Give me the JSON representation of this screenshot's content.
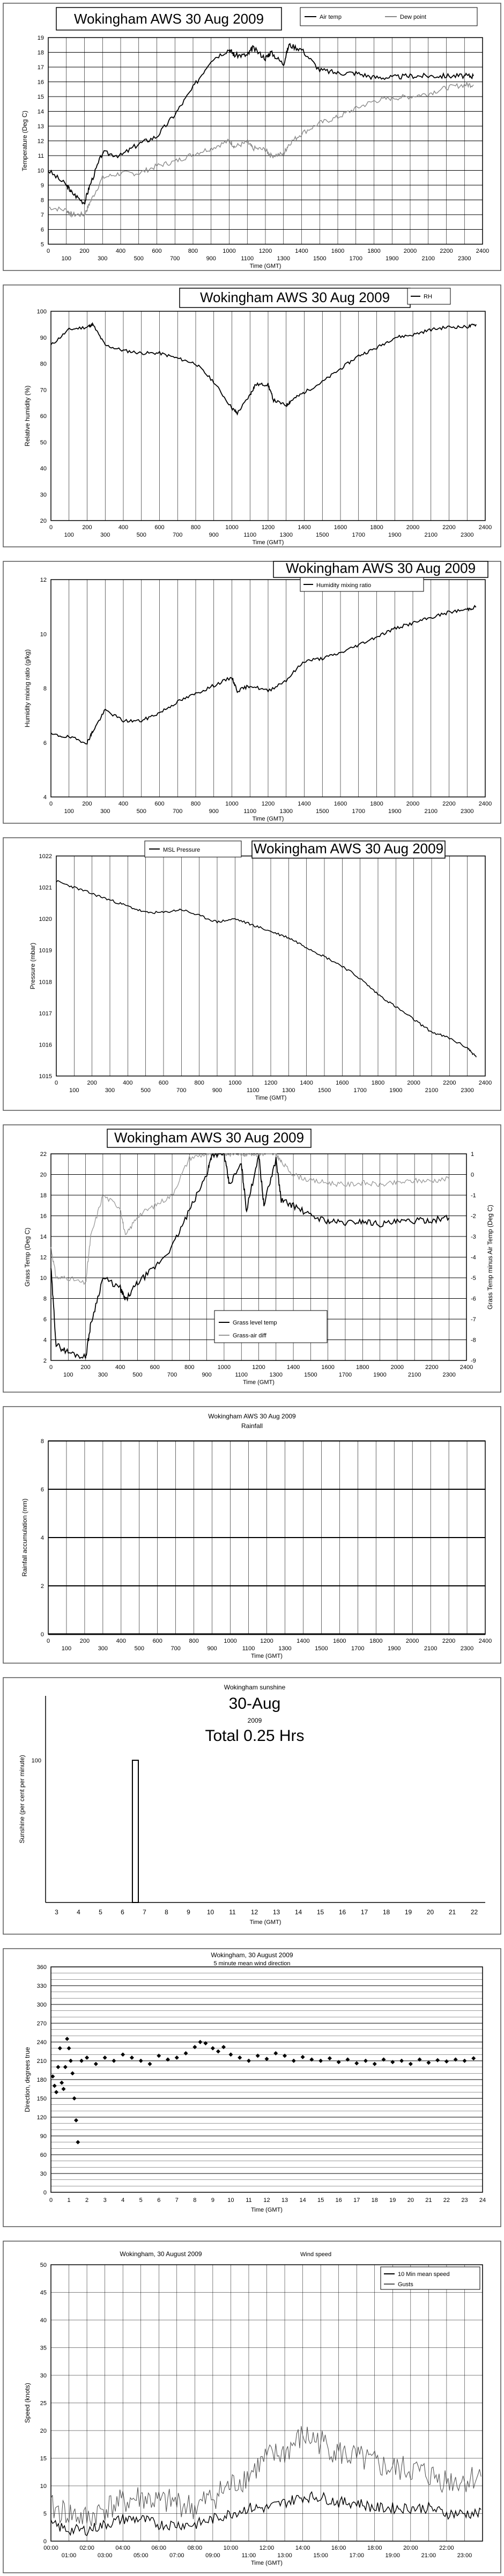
{
  "chart_data": [
    {
      "type": "line",
      "title": "Wokingham AWS 30 Aug 2009",
      "xlabel": "Time (GMT)",
      "ylabel": "Temperature (Deg C)",
      "ylim": [
        5,
        19
      ],
      "yticks": [
        5,
        6,
        7,
        8,
        9,
        10,
        11,
        12,
        13,
        14,
        15,
        16,
        17,
        18,
        19
      ],
      "xticks_top": [
        "0",
        "200",
        "400",
        "600",
        "800",
        "1000",
        "1200",
        "1400",
        "1600",
        "1800",
        "2000",
        "2200",
        "2400"
      ],
      "xticks_bottom": [
        "100",
        "300",
        "500",
        "700",
        "900",
        "1100",
        "1300",
        "1500",
        "1700",
        "1900",
        "2100",
        "2300"
      ],
      "x": [
        0,
        100,
        130,
        200,
        230,
        300,
        400,
        500,
        600,
        700,
        800,
        900,
        1000,
        1030,
        1100,
        1130,
        1200,
        1230,
        1300,
        1330,
        1400,
        1500,
        1600,
        1700,
        1800,
        1900,
        2000,
        2100,
        2200,
        2300,
        2350
      ],
      "series": [
        {
          "name": "Air temp",
          "values": [
            10.0,
            9.0,
            8.5,
            7.8,
            9.0,
            11.2,
            11.0,
            11.8,
            12.3,
            13.8,
            15.6,
            17.5,
            18.2,
            17.8,
            17.8,
            18.3,
            17.6,
            18.0,
            17.2,
            18.5,
            18.2,
            16.8,
            16.6,
            16.6,
            16.3,
            16.3,
            16.4,
            16.4,
            16.4,
            16.4,
            16.4
          ],
          "color": "#000000"
        },
        {
          "name": "Dew point",
          "values": [
            7.5,
            7.3,
            7.0,
            7.0,
            7.8,
            9.5,
            9.8,
            9.8,
            10.3,
            10.6,
            11.1,
            11.5,
            12.0,
            11.6,
            11.9,
            11.5,
            11.4,
            11.0,
            11.1,
            11.8,
            12.5,
            13.2,
            13.6,
            14.2,
            14.7,
            14.9,
            15.0,
            15.2,
            15.6,
            15.8,
            15.8
          ],
          "color": "#888888"
        }
      ]
    },
    {
      "type": "line",
      "title": "Wokingham AWS 30 Aug 2009",
      "xlabel": "Time (GMT)",
      "ylabel": "Relative humidity (%)",
      "ylim": [
        20,
        100
      ],
      "yticks": [
        20,
        30,
        40,
        50,
        60,
        70,
        80,
        90,
        100
      ],
      "xticks_top": [
        "0",
        "200",
        "400",
        "600",
        "800",
        "1000",
        "1200",
        "1400",
        "1600",
        "1800",
        "2000",
        "2200",
        "2400"
      ],
      "xticks_bottom": [
        "100",
        "300",
        "500",
        "700",
        "900",
        "1100",
        "1300",
        "1500",
        "1700",
        "1900",
        "2100",
        "2300"
      ],
      "x": [
        0,
        100,
        200,
        230,
        300,
        400,
        500,
        600,
        700,
        800,
        900,
        1000,
        1030,
        1100,
        1130,
        1200,
        1230,
        1300,
        1330,
        1400,
        1500,
        1600,
        1700,
        1800,
        1900,
        2000,
        2100,
        2200,
        2300,
        2350
      ],
      "series": [
        {
          "name": "RH",
          "values": [
            87,
            93,
            94,
            95,
            87,
            85,
            84,
            84,
            82,
            80,
            73,
            63,
            61,
            68,
            72,
            72,
            66,
            64,
            66,
            69,
            73,
            78,
            83,
            86,
            90,
            91,
            93,
            94,
            94,
            95
          ],
          "color": "#000000"
        }
      ]
    },
    {
      "type": "line",
      "title": "Wokingham AWS 30 Aug 2009",
      "xlabel": "Time (GMT)",
      "ylabel": "Humidity mixing ratio (g/kg)",
      "ylim": [
        4,
        12
      ],
      "yticks": [
        4,
        6,
        8,
        10,
        12
      ],
      "xticks_top": [
        "0",
        "200",
        "400",
        "600",
        "800",
        "1000",
        "1200",
        "1400",
        "1600",
        "1800",
        "2000",
        "2200",
        "2400"
      ],
      "xticks_bottom": [
        "100",
        "300",
        "500",
        "700",
        "900",
        "1100",
        "1300",
        "1500",
        "1700",
        "1900",
        "2100",
        "2300"
      ],
      "x": [
        0,
        100,
        200,
        230,
        300,
        400,
        500,
        600,
        700,
        800,
        900,
        1000,
        1030,
        1100,
        1200,
        1300,
        1400,
        1500,
        1600,
        1700,
        1800,
        1900,
        2000,
        2100,
        2200,
        2300,
        2350
      ],
      "series": [
        {
          "name": "Humidity mixing ratio",
          "values": [
            6.3,
            6.2,
            6.0,
            6.4,
            7.2,
            6.8,
            6.8,
            7.1,
            7.5,
            7.8,
            8.1,
            8.4,
            7.9,
            8.1,
            7.9,
            8.3,
            9.0,
            9.1,
            9.3,
            9.6,
            9.9,
            10.2,
            10.4,
            10.6,
            10.8,
            10.9,
            11.0
          ],
          "color": "#000000"
        }
      ]
    },
    {
      "type": "line",
      "title": "Wokingham AWS 30 Aug 2009",
      "xlabel": "Time (GMT)",
      "ylabel": "Pressure (mbar)",
      "ylim": [
        1015,
        1022
      ],
      "yticks": [
        1015,
        1016,
        1017,
        1018,
        1019,
        1020,
        1021,
        1022
      ],
      "xticks_top": [
        "0",
        "200",
        "400",
        "600",
        "800",
        "1000",
        "1200",
        "1400",
        "1600",
        "1800",
        "2000",
        "2200",
        "2400"
      ],
      "xticks_bottom": [
        "100",
        "300",
        "500",
        "700",
        "900",
        "1100",
        "1300",
        "1500",
        "1700",
        "1900",
        "2100",
        "2300"
      ],
      "x": [
        0,
        100,
        200,
        300,
        400,
        500,
        600,
        700,
        800,
        900,
        1000,
        1100,
        1200,
        1300,
        1400,
        1500,
        1600,
        1700,
        1800,
        1900,
        2000,
        2100,
        2200,
        2300,
        2350
      ],
      "series": [
        {
          "name": "MSL Pressure",
          "values": [
            1021.2,
            1021.0,
            1020.8,
            1020.6,
            1020.4,
            1020.2,
            1020.2,
            1020.3,
            1020.1,
            1019.9,
            1020.0,
            1019.8,
            1019.6,
            1019.4,
            1019.1,
            1018.8,
            1018.5,
            1018.1,
            1017.6,
            1017.2,
            1016.8,
            1016.4,
            1016.2,
            1015.9,
            1015.6
          ],
          "color": "#000000"
        }
      ]
    },
    {
      "type": "line",
      "title": "Wokingham AWS 30 Aug 2009",
      "xlabel": "Time (GMT)",
      "ylabel": "Grass Temp (Deg C)",
      "ylabel_right": "Grass Temp minus Air Temp (Deg C)",
      "ylim": [
        2,
        22
      ],
      "ylim_right": [
        -9,
        1
      ],
      "yticks": [
        2,
        4,
        6,
        8,
        10,
        12,
        14,
        16,
        18,
        20,
        22
      ],
      "yticks_right": [
        -9,
        -8,
        -7,
        -6,
        -5,
        -4,
        -3,
        -2,
        -1,
        0,
        1
      ],
      "xticks_top": [
        "0",
        "200",
        "400",
        "600",
        "800",
        "1000",
        "1200",
        "1400",
        "1600",
        "1800",
        "2000",
        "2200",
        "2400"
      ],
      "xticks_bottom": [
        "100",
        "300",
        "500",
        "700",
        "900",
        "1100",
        "1300",
        "1500",
        "1700",
        "1900",
        "2100",
        "2300"
      ],
      "x": [
        0,
        30,
        100,
        200,
        230,
        300,
        400,
        430,
        500,
        600,
        700,
        800,
        900,
        930,
        1000,
        1030,
        1100,
        1130,
        1200,
        1230,
        1300,
        1330,
        1400,
        1500,
        1600,
        1700,
        1800,
        1900,
        2000,
        2100,
        2200,
        2300
      ],
      "series": [
        {
          "name": "Grass level temp",
          "axis": "left",
          "values": [
            11.0,
            3.5,
            2.8,
            2.3,
            5.5,
            10.0,
            9.0,
            7.8,
            9.5,
            11.0,
            13.0,
            16.5,
            20.0,
            22.0,
            22.0,
            19.0,
            21.0,
            16.5,
            22.0,
            17.0,
            21.5,
            17.5,
            17.0,
            16.0,
            15.5,
            15.3,
            15.5,
            15.2,
            15.4,
            15.5,
            15.6,
            15.8
          ],
          "color": "#000000"
        },
        {
          "name": "Grass-air diff",
          "axis": "right",
          "values": [
            -3.5,
            -5.0,
            -5.0,
            -5.3,
            -3.0,
            -1.0,
            -1.6,
            -3.0,
            -2.0,
            -1.5,
            -1.0,
            0.8,
            1.0,
            1.0,
            1.0,
            1.0,
            1.0,
            1.0,
            1.0,
            1.0,
            1.0,
            0.6,
            0.0,
            -0.3,
            -0.4,
            -0.5,
            -0.4,
            -0.5,
            -0.4,
            -0.3,
            -0.3,
            -0.2
          ],
          "color": "#999999"
        }
      ]
    },
    {
      "type": "line",
      "title": "Wokingham AWS 30 Aug 2009",
      "subtitle": "Rainfall",
      "xlabel": "Time (GMT)",
      "ylabel": "Rainfall accumulation (mm)",
      "ylim": [
        0,
        8
      ],
      "yticks": [
        0,
        2,
        4,
        6,
        8
      ],
      "xticks_top": [
        "0",
        "200",
        "400",
        "600",
        "800",
        "1000",
        "1200",
        "1400",
        "1600",
        "1800",
        "2000",
        "2200",
        "2400"
      ],
      "xticks_bottom": [
        "100",
        "300",
        "500",
        "700",
        "900",
        "1100",
        "1300",
        "1500",
        "1700",
        "1900",
        "2100",
        "2300"
      ],
      "x": [
        0,
        2400
      ],
      "series": [
        {
          "name": "Rainfall",
          "values": [
            0,
            0
          ],
          "color": "#000000"
        }
      ]
    },
    {
      "type": "bar",
      "title": "Wokingham sunshine",
      "date": "30-Aug",
      "year": "2009",
      "total": "Total 0.25 Hrs",
      "xlabel": "Time (GMT)",
      "ylabel": "Sunshine (per cent per minute)",
      "ylim": [
        0,
        100
      ],
      "yticks": [
        "100"
      ],
      "categories": [
        "3",
        "4",
        "5",
        "6",
        "7",
        "8",
        "9",
        "10",
        "11",
        "12",
        "13",
        "14",
        "15",
        "16",
        "17",
        "18",
        "19",
        "20",
        "21",
        "22"
      ],
      "sun_block": {
        "start_hour": 6.45,
        "end_hour": 6.72,
        "value": 100
      }
    },
    {
      "type": "scatter",
      "title": "Wokingham,  30 August 2009",
      "subtitle": "5 minute mean wind direction",
      "xlabel": "Time (GMT)",
      "ylabel": "Direction, degrees true",
      "ylim": [
        0,
        360
      ],
      "yticks": [
        "0",
        "30",
        "60",
        "90",
        "120",
        "150",
        "180",
        "210",
        "240",
        "270",
        "300",
        "330",
        "360"
      ],
      "xticks": [
        "0",
        "1",
        "2",
        "3",
        "4",
        "5",
        "6",
        "7",
        "8",
        "9",
        "10",
        "11",
        "12",
        "13",
        "14",
        "15",
        "16",
        "17",
        "18",
        "19",
        "20",
        "21",
        "22",
        "23",
        "24"
      ],
      "x": [
        0.1,
        0.2,
        0.3,
        0.4,
        0.5,
        0.6,
        0.7,
        0.8,
        0.9,
        1.0,
        1.1,
        1.2,
        1.3,
        1.4,
        1.5,
        1.7,
        2.0,
        2.5,
        3.0,
        3.5,
        4.0,
        4.5,
        5.0,
        5.5,
        6.0,
        6.5,
        7.0,
        7.5,
        8.0,
        8.3,
        8.6,
        9.0,
        9.3,
        9.6,
        10.0,
        10.5,
        11.0,
        11.5,
        12.0,
        12.5,
        13.0,
        13.5,
        14.0,
        14.5,
        15.0,
        15.5,
        16.0,
        16.5,
        17.0,
        17.5,
        18.0,
        18.5,
        19.0,
        19.5,
        20.0,
        20.5,
        21.0,
        21.5,
        22.0,
        22.5,
        23.0,
        23.5
      ],
      "y": [
        185,
        170,
        160,
        200,
        230,
        175,
        165,
        200,
        245,
        230,
        210,
        190,
        150,
        115,
        80,
        210,
        215,
        205,
        215,
        210,
        220,
        215,
        210,
        205,
        218,
        212,
        215,
        222,
        232,
        240,
        238,
        230,
        225,
        232,
        220,
        215,
        210,
        218,
        213,
        222,
        218,
        210,
        216,
        212,
        210,
        214,
        208,
        212,
        206,
        210,
        205,
        212,
        208,
        210,
        205,
        212,
        207,
        211,
        209,
        212,
        210,
        214
      ],
      "color": "#000000"
    },
    {
      "type": "line",
      "title": "Wokingham,  30 August 2009",
      "subtitle": "Wind speed",
      "xlabel": "Time (GMT)",
      "ylabel": "Speed (knots)",
      "ylim": [
        0,
        50
      ],
      "yticks": [
        "0",
        "5",
        "10",
        "15",
        "20",
        "25",
        "30",
        "35",
        "40",
        "45",
        "50"
      ],
      "xticks_top": [
        "00:00",
        "02:00",
        "04:00",
        "06:00",
        "08:00",
        "10:00",
        "12:00",
        "14:00",
        "16:00",
        "18:00",
        "20:00",
        "22:00"
      ],
      "xticks_bottom": [
        "01:00",
        "03:00",
        "05:00",
        "07:00",
        "09:00",
        "11:00",
        "13:00",
        "15:00",
        "17:00",
        "19:00",
        "21:00",
        "23:00"
      ],
      "x": [
        0,
        1,
        2,
        3,
        4,
        5,
        6,
        7,
        8,
        9,
        10,
        11,
        12,
        13,
        14,
        15,
        16,
        17,
        18,
        19,
        20,
        21,
        22,
        23,
        24
      ],
      "series": [
        {
          "name": "10 Min mean speed",
          "values": [
            3,
            2,
            2,
            3,
            4,
            4,
            3,
            3,
            3,
            4,
            5,
            6,
            6,
            7,
            8,
            8,
            7,
            7,
            6,
            6,
            6,
            6,
            5,
            5,
            5
          ],
          "color": "#000000"
        },
        {
          "name": "Gusts",
          "values": [
            6,
            5,
            4,
            6,
            7,
            8,
            7,
            7,
            6,
            8,
            10,
            12,
            15,
            16,
            19,
            18,
            16,
            15,
            14,
            13,
            13,
            12,
            11,
            11,
            12
          ],
          "color": "#555555"
        }
      ]
    }
  ]
}
